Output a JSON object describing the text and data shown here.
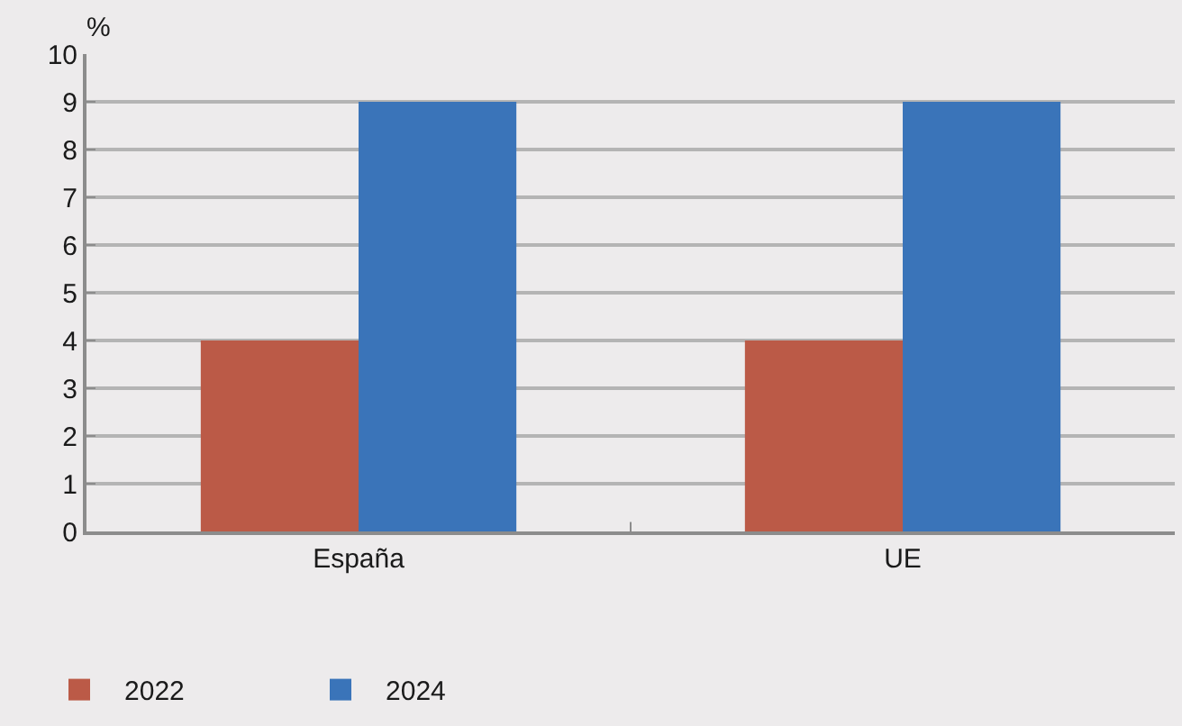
{
  "chart_data": {
    "type": "bar",
    "ylabel": "%",
    "categories": [
      "España",
      "UE"
    ],
    "series": [
      {
        "name": "2022",
        "color": "#bb5a47",
        "values": [
          4,
          4
        ]
      },
      {
        "name": "2024",
        "color": "#3a74b9",
        "values": [
          9,
          9
        ]
      }
    ],
    "ylim": [
      0,
      10
    ],
    "yticks": [
      0,
      1,
      2,
      3,
      4,
      5,
      6,
      7,
      8,
      9,
      10
    ],
    "grid": "y",
    "legend": "bottom left"
  }
}
